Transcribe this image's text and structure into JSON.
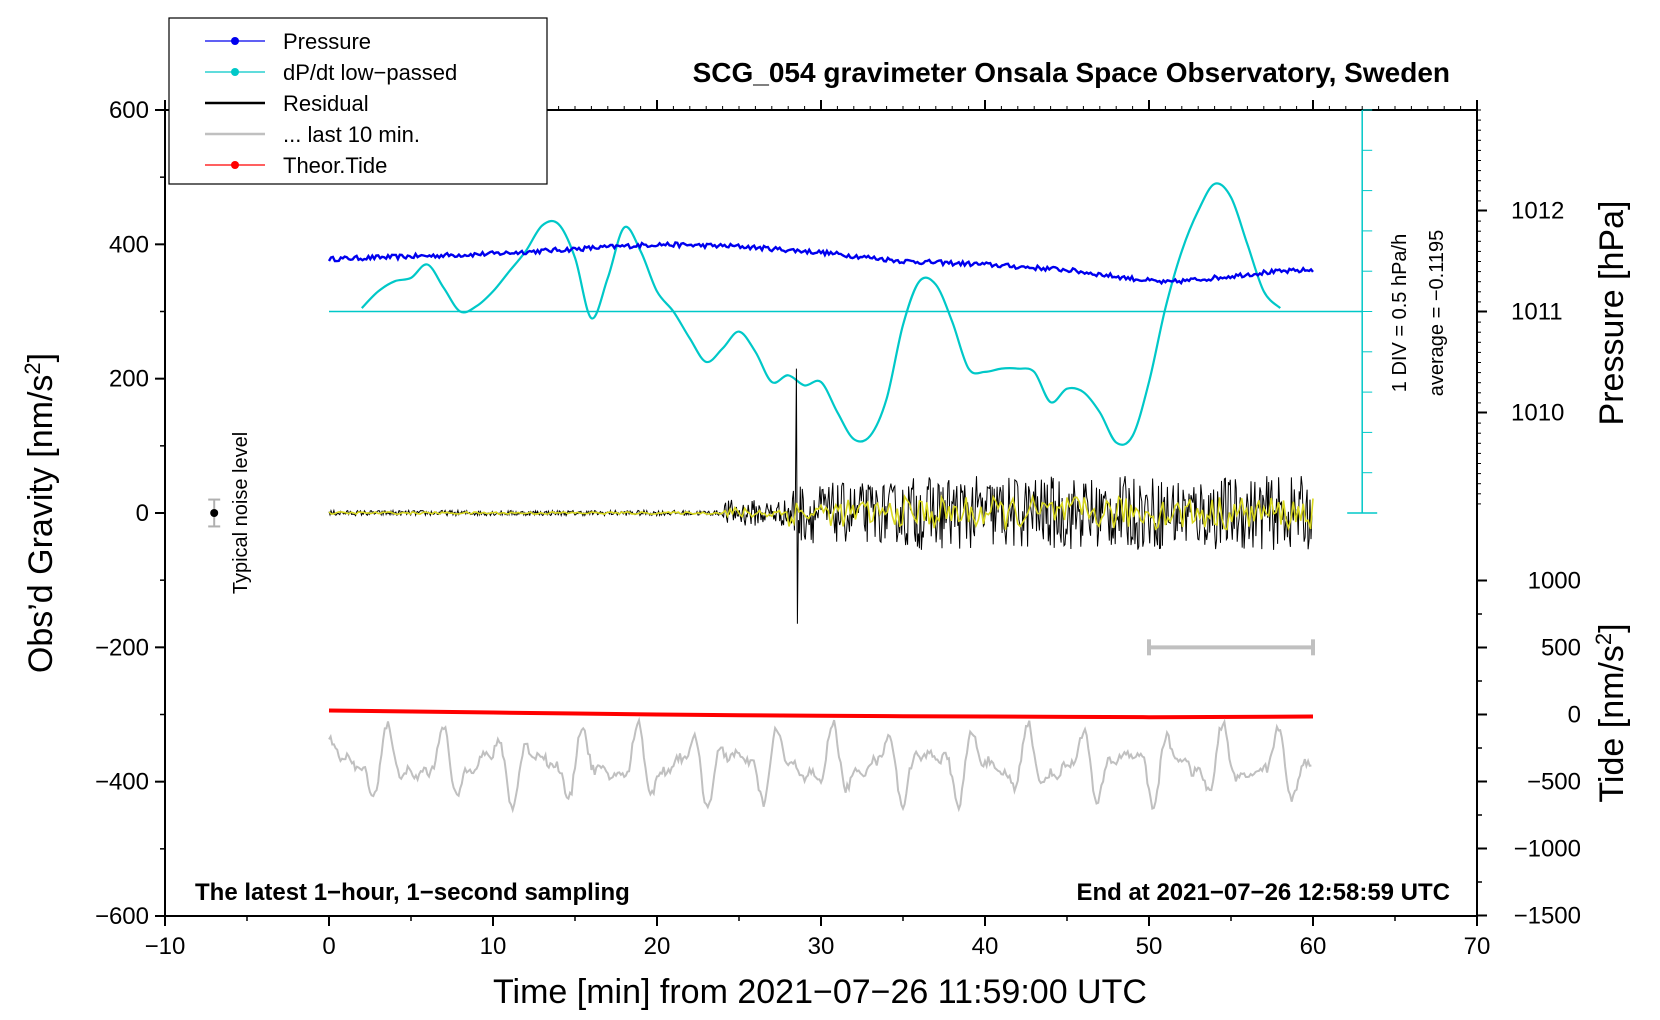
{
  "chart_data": {
    "type": "line",
    "title": "SCG_054 gravimeter Onsala Space Observatory, Sweden",
    "xlabel": "Time [min] from 2021−07−26 11:59:00 UTC",
    "ylabel_left": "Obs’d Gravity [nm/s",
    "ylabel_left_sup": "2",
    "ylabel_left_end": "]",
    "ylabel_pressure": "Pressure [hPa]",
    "ylabel_tide": "Tide [nm/s",
    "ylabel_tide_sup": "2",
    "ylabel_tide_end": "]",
    "xlim": [
      -10,
      70
    ],
    "ylim": [
      -600,
      600
    ],
    "x_ticks": [
      -10,
      0,
      10,
      20,
      30,
      40,
      50,
      60,
      70
    ],
    "x_tick_labels": [
      "−10",
      "0",
      "10",
      "20",
      "30",
      "40",
      "50",
      "60",
      "70"
    ],
    "y_ticks": [
      600,
      400,
      200,
      0,
      -200,
      -400,
      -600
    ],
    "y_tick_labels": [
      "600",
      "400",
      "200",
      "0",
      "−200",
      "−400",
      "−600"
    ],
    "pressure_ticks": [
      1012,
      1011,
      1010
    ],
    "pressure_tick_labels": [
      "1012",
      "1011",
      "1010"
    ],
    "tide_ticks": [
      1000,
      500,
      0,
      -500,
      -1000,
      -1500
    ],
    "tide_tick_labels": [
      "1000",
      "500",
      "0",
      "−500",
      "−1000",
      "−1500"
    ],
    "legend": [
      {
        "label": "Pressure",
        "color": "#0000ee",
        "marker": true
      },
      {
        "label": "dP/dt low−passed",
        "color": "#00c8c8",
        "marker": true
      },
      {
        "label": "Residual",
        "color": "#000000",
        "marker": false
      },
      {
        "label": "... last 10 min.",
        "color": "#c0c0c0",
        "marker": false
      },
      {
        "label": "Theor.Tide",
        "color": "#ff0000",
        "marker": true
      }
    ],
    "legend_position": "top-left",
    "annotations": {
      "bottom_left": "The latest 1−hour, 1−second sampling",
      "bottom_right": "End at 2021−07−26 12:58:59 UTC",
      "noise": "Typical noise level",
      "div": "1 DIV = 0.5 hPa/h",
      "average": "average = −0.1195"
    },
    "noise_level": {
      "x": -7,
      "y": 0,
      "err": 20
    },
    "last10_bar": {
      "x_start": 50,
      "x_end": 60,
      "y": -200
    },
    "dpdt_baseline_y": 300,
    "series": [
      {
        "name": "Pressure",
        "color": "#0000ee",
        "x": [
          0,
          5,
          10,
          15,
          20,
          25,
          30,
          35,
          40,
          45,
          48,
          51,
          54,
          57,
          60
        ],
        "y": [
          378,
          382,
          386,
          393,
          400,
          397,
          388,
          375,
          370,
          362,
          352,
          343,
          350,
          358,
          362
        ]
      },
      {
        "name": "dP/dt low−passed",
        "color": "#00c8c8",
        "x": [
          2,
          3,
          4,
          5,
          6,
          7,
          8,
          9,
          10,
          11,
          12,
          13,
          14,
          15,
          16,
          17,
          18,
          19,
          20,
          21,
          22,
          23,
          24,
          25,
          26,
          27,
          28,
          29,
          30,
          31,
          32,
          33,
          34,
          35,
          36,
          37,
          38,
          39,
          40,
          41,
          42,
          43,
          44,
          45,
          46,
          47,
          48,
          49,
          50,
          51,
          52,
          53,
          54,
          55,
          56,
          57,
          58
        ],
        "y": [
          305,
          330,
          345,
          350,
          370,
          335,
          300,
          308,
          330,
          360,
          390,
          428,
          430,
          380,
          290,
          350,
          425,
          390,
          330,
          300,
          260,
          225,
          245,
          270,
          240,
          195,
          205,
          190,
          195,
          150,
          110,
          115,
          170,
          280,
          345,
          340,
          285,
          215,
          210,
          215,
          215,
          210,
          165,
          185,
          180,
          150,
          105,
          115,
          195,
          305,
          390,
          450,
          490,
          470,
          400,
          330,
          305
        ]
      },
      {
        "name": "Theor.Tide",
        "color": "#ff0000",
        "x": [
          0,
          10,
          20,
          30,
          40,
          50,
          60
        ],
        "y": [
          -294,
          -297,
          -300,
          -302,
          -303,
          -304,
          -303
        ]
      }
    ],
    "residual": {
      "x_start": 0,
      "x_end": 60,
      "spike_x": 28.5,
      "spike_max": 215,
      "spike_min": -165
    }
  }
}
